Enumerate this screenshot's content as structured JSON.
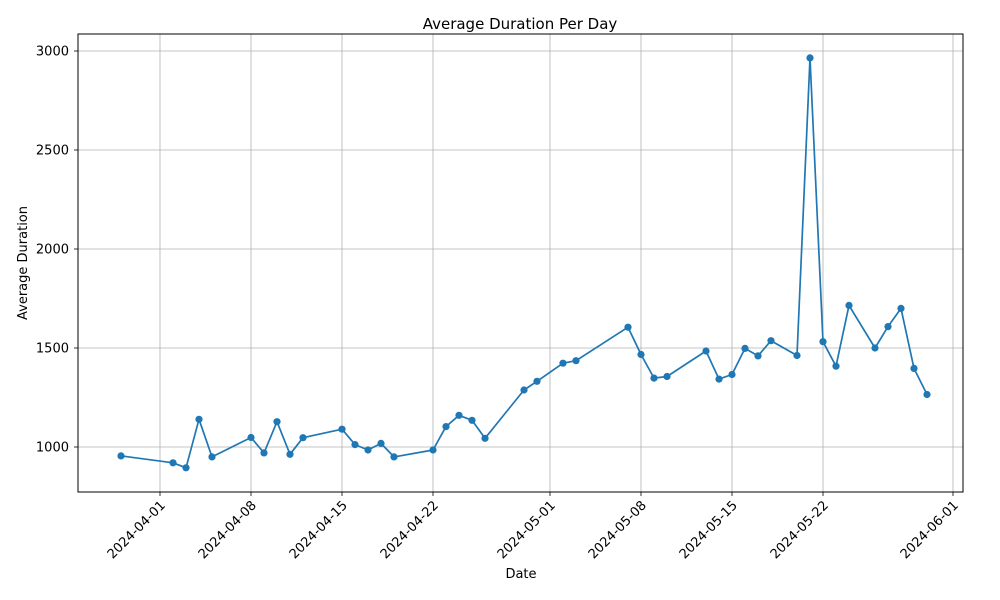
{
  "chart_data": {
    "type": "line",
    "title": "Average Duration Per Day",
    "xlabel": "Date",
    "ylabel": "Average Duration",
    "grid": true,
    "legend": null,
    "line_color": "#1f77b4",
    "marker": "circle",
    "ylim": [
      790,
      3085
    ],
    "xlim": [
      "2024-03-26",
      "2024-06-02"
    ],
    "x_tick_labels": [
      "2024-04-01",
      "2024-04-08",
      "2024-04-15",
      "2024-04-22",
      "2024-05-01",
      "2024-05-08",
      "2024-05-15",
      "2024-05-22",
      "2024-06-01"
    ],
    "y_tick_labels": [
      1000,
      1500,
      2000,
      2500,
      3000
    ],
    "series": [
      {
        "name": "average-duration",
        "x": [
          "2024-03-29",
          "2024-04-02",
          "2024-04-03",
          "2024-04-04",
          "2024-04-05",
          "2024-04-08",
          "2024-04-09",
          "2024-04-10",
          "2024-04-11",
          "2024-04-12",
          "2024-04-15",
          "2024-04-16",
          "2024-04-17",
          "2024-04-18",
          "2024-04-19",
          "2024-04-22",
          "2024-04-23",
          "2024-04-24",
          "2024-04-25",
          "2024-04-26",
          "2024-04-29",
          "2024-04-30",
          "2024-05-02",
          "2024-05-03",
          "2024-05-07",
          "2024-05-08",
          "2024-05-09",
          "2024-05-10",
          "2024-05-13",
          "2024-05-14",
          "2024-05-15",
          "2024-05-16",
          "2024-05-17",
          "2024-05-18",
          "2024-05-20",
          "2024-05-21",
          "2024-05-22",
          "2024-05-23",
          "2024-05-24",
          "2024-05-26",
          "2024-05-27",
          "2024-05-28",
          "2024-05-29",
          "2024-05-30"
        ],
        "y": [
          955,
          920,
          895,
          1140,
          950,
          1048,
          970,
          1128,
          963,
          1047,
          1090,
          1012,
          985,
          1018,
          950,
          985,
          1103,
          1160,
          1135,
          1044,
          1288,
          1332,
          1423,
          1436,
          1605,
          1467,
          1348,
          1356,
          1485,
          1343,
          1366,
          1498,
          1460,
          1537,
          1462,
          2965,
          1532,
          1408,
          1715,
          1500,
          1608,
          1700,
          1397,
          1265
        ]
      }
    ]
  }
}
